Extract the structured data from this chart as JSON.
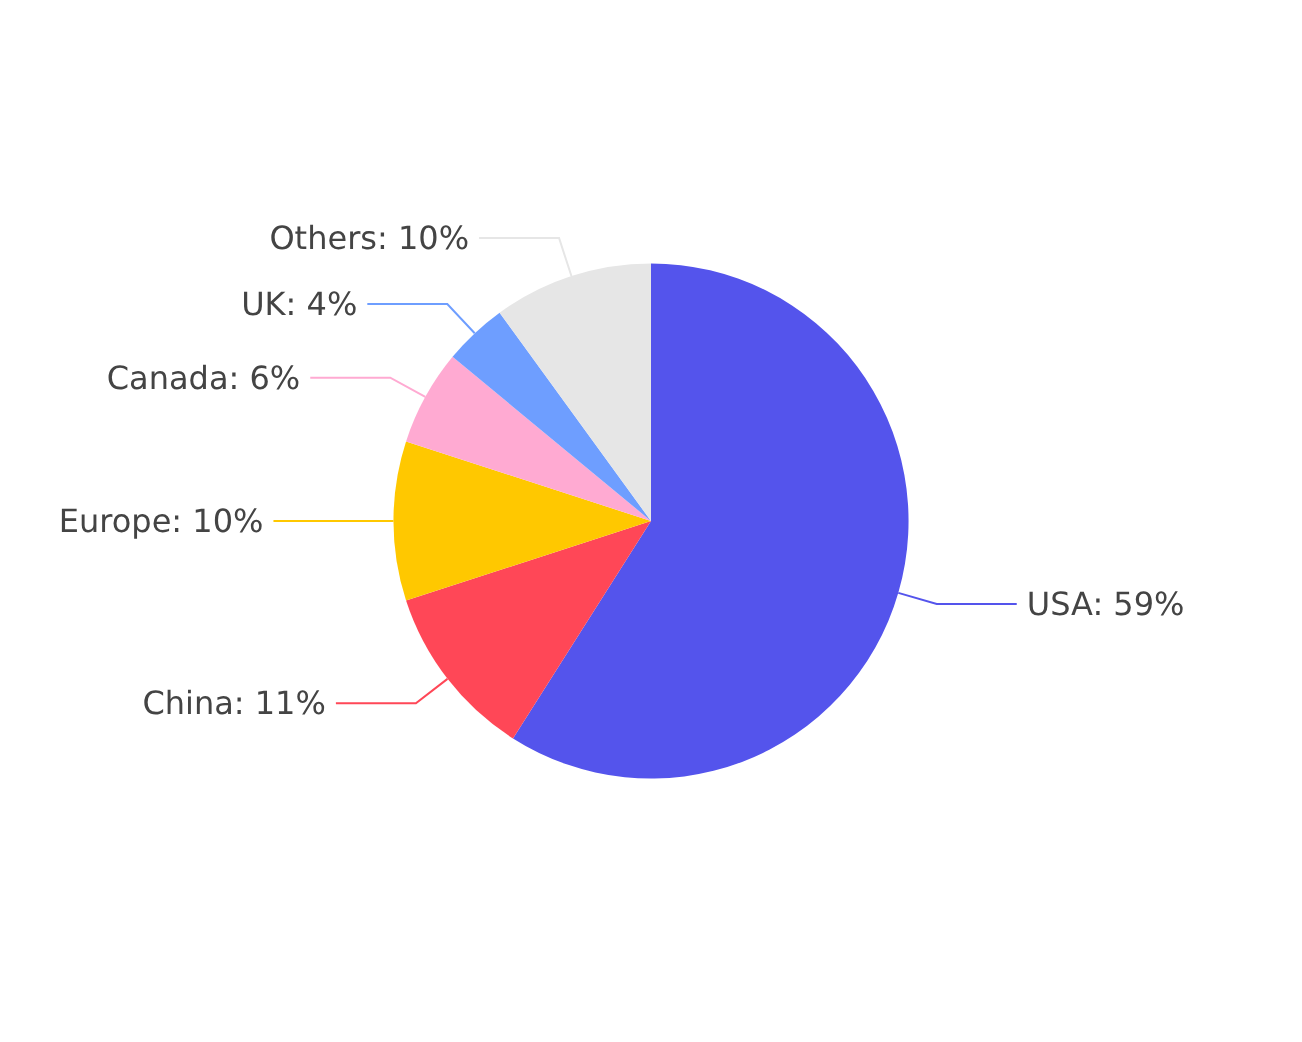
{
  "chart_data": {
    "type": "pie",
    "categories": [
      "USA",
      "China",
      "Europe",
      "Canada",
      "UK",
      "Others"
    ],
    "values": [
      59,
      11,
      10,
      6,
      4,
      10
    ],
    "value_labels": [
      "59%",
      "11%",
      "10%",
      "6%",
      "4%",
      "10%"
    ],
    "colors": [
      "#5454ec",
      "#ff4757",
      "#ffc800",
      "#ffaad2",
      "#6e9eff",
      "#e6e6e6"
    ],
    "legend": false
  }
}
